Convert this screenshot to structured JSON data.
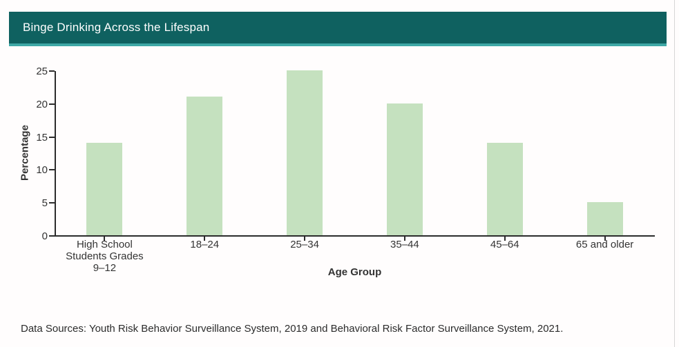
{
  "header": {
    "title": "Binge Drinking Across the Lifespan"
  },
  "footer": {
    "data_sources": "Data Sources: Youth Risk Behavior Surveillance System, 2019 and Behavioral Risk Factor Surveillance System, 2021."
  },
  "colors": {
    "header_bg": "#0f6160",
    "header_accent": "#3fa8a6",
    "bar_fill": "#c5e1bf",
    "axis": "#2b2b2b",
    "text": "#333333"
  },
  "chart_data": {
    "type": "bar",
    "title": "Binge Drinking Across the Lifespan",
    "xlabel": "Age Group",
    "ylabel": "Percentage",
    "categories": [
      "High School Students Grades 9–12",
      "18–24",
      "25–34",
      "35–44",
      "45–64",
      "65 and older"
    ],
    "category_lines": [
      [
        "High School",
        "Students Grades",
        "9–12"
      ],
      [
        "18–24"
      ],
      [
        "25–34"
      ],
      [
        "35–44"
      ],
      [
        "45–64"
      ],
      [
        "65 and older"
      ]
    ],
    "values": [
      14,
      21,
      25,
      20,
      14,
      5
    ],
    "ylim": [
      0,
      25
    ],
    "yticks": [
      0,
      5,
      10,
      15,
      20,
      25
    ],
    "grid": false,
    "legend_position": "none"
  }
}
